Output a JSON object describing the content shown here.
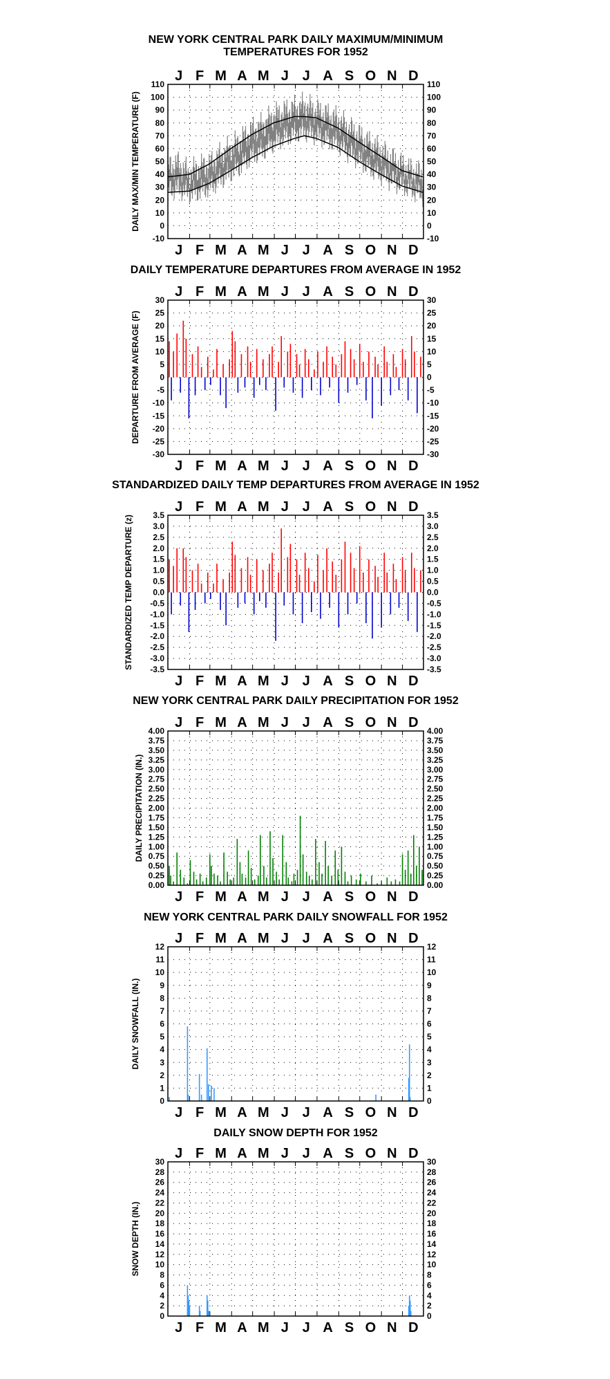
{
  "months": [
    "J",
    "F",
    "M",
    "A",
    "M",
    "J",
    "J",
    "A",
    "S",
    "O",
    "N",
    "D"
  ],
  "colors": {
    "frame": "#000000",
    "temp_trace": "#808080",
    "normals": "#000000",
    "departure_pos": "#ff0000",
    "departure_neg": "#0000cc",
    "precip": "#008000",
    "snow": "#3399ff"
  },
  "chart_data": [
    {
      "type": "line",
      "title": "NEW YORK CENTRAL PARK DAILY MAXIMUM/MINIMUM\nTEMPERATURES FOR 1952",
      "ylabel": "DAILY MAX/MIN TEMPERATURE (F)",
      "xlabel": "",
      "ylim": [
        -10,
        110
      ],
      "yticks": [
        -10,
        0,
        10,
        20,
        30,
        40,
        50,
        60,
        70,
        80,
        90,
        100,
        110
      ],
      "grid": true,
      "series": [
        {
          "role": "daily range",
          "x": [
            1,
            15,
            32,
            45,
            60,
            75,
            91,
            105,
            121,
            135,
            152,
            166,
            182,
            196,
            213,
            227,
            244,
            258,
            274,
            288,
            305,
            319,
            335,
            350,
            365
          ],
          "max": [
            45,
            48,
            40,
            45,
            47,
            54,
            60,
            66,
            74,
            77,
            85,
            88,
            91,
            93,
            89,
            86,
            82,
            76,
            70,
            64,
            58,
            52,
            47,
            42,
            40
          ],
          "min": [
            28,
            30,
            25,
            27,
            30,
            36,
            42,
            47,
            55,
            58,
            65,
            69,
            72,
            74,
            71,
            68,
            64,
            58,
            52,
            46,
            40,
            36,
            32,
            28,
            24
          ]
        },
        {
          "role": "normal max",
          "x": [
            1,
            32,
            60,
            91,
            121,
            152,
            182,
            196,
            213,
            244,
            274,
            305,
            335,
            365
          ],
          "values": [
            38,
            40,
            48,
            60,
            71,
            80,
            85,
            85,
            84,
            76,
            65,
            54,
            43,
            38
          ]
        },
        {
          "role": "normal min",
          "x": [
            1,
            32,
            60,
            91,
            121,
            152,
            182,
            196,
            213,
            244,
            274,
            305,
            335,
            365
          ],
          "values": [
            26,
            27,
            33,
            43,
            53,
            62,
            68,
            70,
            68,
            61,
            50,
            40,
            31,
            26
          ]
        }
      ]
    },
    {
      "type": "bar",
      "title": "DAILY TEMPERATURE DEPARTURES FROM AVERAGE IN 1952",
      "ylabel": "DEPARTURE FROM AVERAGE (F)",
      "xlabel": "",
      "ylim": [
        -30,
        30
      ],
      "yticks": [
        -30,
        -25,
        -20,
        -15,
        -10,
        -5,
        0,
        5,
        10,
        15,
        20,
        25,
        30
      ],
      "grid": true,
      "x": [
        3,
        6,
        9,
        14,
        19,
        23,
        27,
        31,
        36,
        40,
        44,
        49,
        54,
        58,
        62,
        66,
        71,
        76,
        80,
        84,
        89,
        93,
        97,
        101,
        106,
        111,
        115,
        119,
        124,
        128,
        132,
        137,
        141,
        146,
        150,
        155,
        159,
        163,
        167,
        172,
        176,
        180,
        185,
        189,
        193,
        197,
        202,
        206,
        210,
        215,
        219,
        223,
        228,
        232,
        236,
        241,
        245,
        249,
        254,
        258,
        262,
        267,
        271,
        275,
        280,
        284,
        288,
        293,
        297,
        301,
        306,
        310,
        314,
        319,
        323,
        327,
        331,
        336,
        340,
        344,
        349,
        353,
        357,
        362
      ],
      "values": [
        14,
        -9,
        10,
        17,
        -6,
        22,
        15,
        -16,
        9,
        -7,
        12,
        4,
        -5,
        8,
        -3,
        3,
        11,
        -7,
        5,
        -12,
        7,
        18,
        14,
        -6,
        9,
        -4,
        12,
        6,
        -8,
        11,
        -3,
        7,
        -5,
        9,
        12,
        -13,
        6,
        16,
        -4,
        10,
        13,
        -6,
        9,
        5,
        -8,
        11,
        7,
        -5,
        3,
        10,
        -7,
        6,
        12,
        -4,
        8,
        5,
        -10,
        9,
        14,
        -6,
        11,
        7,
        -3,
        13,
        6,
        -9,
        10,
        -16,
        8,
        5,
        -11,
        12,
        6,
        -7,
        9,
        4,
        -5,
        11,
        7,
        -9,
        16,
        10,
        -14,
        8
      ]
    },
    {
      "type": "bar",
      "title": "STANDARDIZED DAILY TEMP DEPARTURES FROM AVERAGE IN 1952",
      "ylabel": "STANDARDIZED TEMP DEPARTURE (z)",
      "xlabel": "",
      "ylim": [
        -3.5,
        3.5
      ],
      "yticks": [
        -3.5,
        -3.0,
        -2.5,
        -2.0,
        -1.5,
        -1.0,
        -0.5,
        0.0,
        0.5,
        1.0,
        1.5,
        2.0,
        2.5,
        3.0,
        3.5
      ],
      "grid": true,
      "x": [
        3,
        6,
        9,
        14,
        19,
        23,
        27,
        31,
        36,
        40,
        44,
        49,
        54,
        58,
        62,
        66,
        71,
        76,
        80,
        84,
        89,
        93,
        97,
        101,
        106,
        111,
        115,
        119,
        124,
        128,
        132,
        137,
        141,
        146,
        150,
        155,
        159,
        163,
        167,
        172,
        176,
        180,
        185,
        189,
        193,
        197,
        202,
        206,
        210,
        215,
        219,
        223,
        228,
        232,
        236,
        241,
        245,
        249,
        254,
        258,
        262,
        267,
        271,
        275,
        280,
        284,
        288,
        293,
        297,
        301,
        306,
        310,
        314,
        319,
        323,
        327,
        331,
        336,
        340,
        344,
        349,
        353,
        357,
        362
      ],
      "values": [
        1.5,
        -1.0,
        1.2,
        2.0,
        -0.6,
        2.0,
        1.6,
        -1.8,
        1.0,
        -0.8,
        1.3,
        0.4,
        -0.5,
        0.9,
        -0.3,
        0.4,
        1.3,
        -0.8,
        0.6,
        -1.5,
        0.9,
        2.3,
        1.7,
        -0.7,
        1.1,
        -0.5,
        1.6,
        0.8,
        -1.0,
        1.5,
        -0.4,
        1.0,
        -0.7,
        1.3,
        1.8,
        -2.2,
        0.9,
        2.9,
        -0.6,
        1.6,
        2.2,
        -1.0,
        1.5,
        0.8,
        -1.4,
        1.8,
        1.1,
        -0.9,
        0.5,
        1.7,
        -1.2,
        1.0,
        2.0,
        -0.7,
        1.4,
        0.8,
        -1.6,
        1.5,
        2.3,
        -1.0,
        1.8,
        1.1,
        -0.5,
        2.1,
        0.9,
        -1.4,
        1.5,
        -2.1,
        1.2,
        0.7,
        -1.6,
        1.8,
        0.9,
        -1.0,
        1.3,
        0.6,
        -0.7,
        1.6,
        1.0,
        -1.3,
        1.8,
        1.1,
        -1.8,
        1.0
      ]
    },
    {
      "type": "bar",
      "title": "NEW YORK CENTRAL PARK DAILY PRECIPITATION FOR 1952",
      "ylabel": "DAILY PRECIPITATION (IN.)",
      "xlabel": "",
      "ylim": [
        0,
        4
      ],
      "yticks": [
        0.0,
        0.25,
        0.5,
        0.75,
        1.0,
        1.25,
        1.5,
        1.75,
        2.0,
        2.25,
        2.5,
        2.75,
        3.0,
        3.25,
        3.5,
        3.75,
        4.0
      ],
      "grid": true,
      "x": [
        3,
        5,
        9,
        14,
        19,
        24,
        29,
        33,
        38,
        42,
        47,
        51,
        56,
        61,
        63,
        67,
        72,
        76,
        81,
        86,
        90,
        95,
        100,
        104,
        107,
        112,
        116,
        120,
        125,
        130,
        133,
        138,
        142,
        147,
        151,
        156,
        160,
        165,
        170,
        173,
        178,
        181,
        186,
        190,
        194,
        199,
        203,
        207,
        212,
        217,
        221,
        226,
        230,
        235,
        240,
        244,
        249,
        254,
        258,
        263,
        270,
        276,
        284,
        292,
        300,
        306,
        314,
        320,
        326,
        332,
        336,
        340,
        344,
        348,
        352,
        356,
        360,
        364
      ],
      "values": [
        0.5,
        0.25,
        0.1,
        0.85,
        0.4,
        0.2,
        0.05,
        0.65,
        0.35,
        0.15,
        0.3,
        0.1,
        0.2,
        0.8,
        0.5,
        0.3,
        0.25,
        0.1,
        0.85,
        0.35,
        0.15,
        0.2,
        1.2,
        0.6,
        0.3,
        0.2,
        0.9,
        0.45,
        0.15,
        0.25,
        1.3,
        0.5,
        0.2,
        1.4,
        0.7,
        0.35,
        0.15,
        1.3,
        0.6,
        0.2,
        0.1,
        0.3,
        0.4,
        1.8,
        0.8,
        0.35,
        0.25,
        0.15,
        1.2,
        0.6,
        0.3,
        1.15,
        0.5,
        0.25,
        0.9,
        0.4,
        1.0,
        0.35,
        0.1,
        0.25,
        0.15,
        0.3,
        0.1,
        0.25,
        0.05,
        0.1,
        0.2,
        0.1,
        0.15,
        0.1,
        0.8,
        0.4,
        0.9,
        0.3,
        1.3,
        0.5,
        1.0,
        0.4
      ]
    },
    {
      "type": "bar",
      "title": "NEW YORK CENTRAL PARK DAILY SNOWFALL FOR 1952",
      "ylabel": "DAILY SNOWFALL (IN.)",
      "xlabel": "",
      "ylim": [
        0,
        12
      ],
      "yticks": [
        0,
        1,
        2,
        3,
        4,
        5,
        6,
        7,
        8,
        9,
        10,
        11,
        12
      ],
      "grid": true,
      "x": [
        3,
        29,
        30,
        46,
        49,
        57,
        59,
        63,
        67,
        298,
        345,
        346,
        347
      ],
      "values": [
        0.3,
        5.8,
        0.5,
        2.1,
        0.5,
        4.1,
        1.3,
        1.2,
        1.0,
        0.5,
        1.8,
        4.4,
        0.3
      ]
    },
    {
      "type": "bar",
      "title": "DAILY SNOW DEPTH FOR 1952",
      "ylabel": "SNOW DEPTH (IN.)",
      "xlabel": "",
      "ylim": [
        0,
        30
      ],
      "yticks": [
        0,
        2,
        4,
        6,
        8,
        10,
        12,
        14,
        16,
        18,
        20,
        22,
        24,
        26,
        28,
        30
      ],
      "grid": true,
      "x": [
        29,
        30,
        31,
        32,
        46,
        47,
        57,
        58,
        59,
        60,
        345,
        346,
        347,
        348
      ],
      "values": [
        6,
        4,
        3,
        2,
        2,
        1,
        4,
        3,
        1,
        1,
        2,
        4,
        3,
        1
      ]
    }
  ]
}
